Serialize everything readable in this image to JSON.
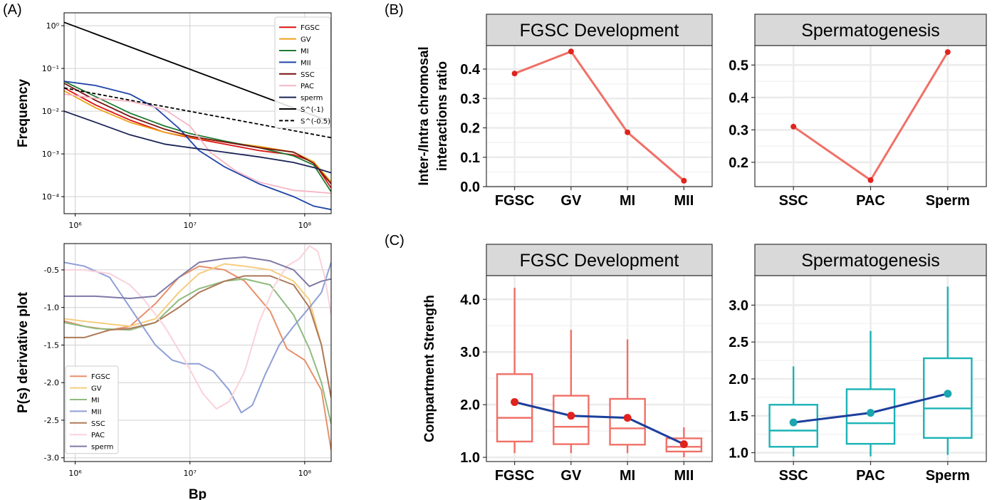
{
  "panel_letters": {
    "a": "(A)",
    "b": "(B)",
    "c": "(C)"
  },
  "colors": {
    "FGSC": "#dd1111",
    "GV": "#f0a21a",
    "MI": "#1e7b32",
    "MII": "#1f45a8",
    "SSC": "#7a1010",
    "PAC": "#f6b6c4",
    "sperm": "#1b2456",
    "deriv_FGSC": "#e8906a",
    "deriv_GV": "#f5cd7e",
    "deriv_MI": "#8fbb7f",
    "deriv_MII": "#8f9fd6",
    "deriv_SSC": "#ad7a5a",
    "deriv_PAC": "#f9d2db",
    "deriv_sperm": "#7e7aa6",
    "strip_fill": "#d9d9d9",
    "panel_grid": "#ebebeb",
    "salmon": "#f07067",
    "teal": "#1bb3b6",
    "mean_red": "#e0231e",
    "mean_blue": "#1d3f9c",
    "mean_teal": "#1aa5b0"
  },
  "chart_data": [
    {
      "id": "A-top",
      "type": "line",
      "ylabel": "Frequency",
      "xscale": "log",
      "yscale": "log",
      "xlim": [
        800000,
        170000000
      ],
      "ylim": [
        4e-05,
        2
      ],
      "x_ticks": [
        {
          "v": 1000000,
          "label": "10⁶"
        },
        {
          "v": 10000000,
          "label": "10⁷"
        },
        {
          "v": 100000000,
          "label": "10⁸"
        }
      ],
      "y_ticks": [
        {
          "v": 1,
          "label": "10⁰"
        },
        {
          "v": 0.1,
          "label": "10⁻¹"
        },
        {
          "v": 0.01,
          "label": "10⁻²"
        },
        {
          "v": 0.001,
          "label": "10⁻³"
        },
        {
          "v": 0.0001,
          "label": "10⁻⁴"
        }
      ],
      "grid": true,
      "legend_position": "top-right",
      "series": [
        {
          "name": "FGSC",
          "style": "solid",
          "x": [
            800000,
            1500000,
            3000000,
            6000000,
            10000000,
            20000000,
            40000000,
            80000000,
            120000000,
            170000000
          ],
          "y": [
            0.035,
            0.014,
            0.0062,
            0.0032,
            0.0024,
            0.0017,
            0.0012,
            0.00095,
            0.00065,
            0.00016
          ]
        },
        {
          "name": "GV",
          "style": "solid",
          "x": [
            800000,
            1500000,
            3000000,
            6000000,
            10000000,
            20000000,
            40000000,
            80000000,
            120000000,
            170000000
          ],
          "y": [
            0.03,
            0.012,
            0.0055,
            0.0032,
            0.0025,
            0.0019,
            0.0015,
            0.0011,
            0.00065,
            0.00022
          ]
        },
        {
          "name": "MI",
          "style": "solid",
          "x": [
            800000,
            1500000,
            3000000,
            6000000,
            10000000,
            20000000,
            40000000,
            80000000,
            120000000,
            170000000
          ],
          "y": [
            0.05,
            0.022,
            0.009,
            0.0045,
            0.003,
            0.002,
            0.0014,
            0.0009,
            0.00055,
            0.00013
          ]
        },
        {
          "name": "MII",
          "style": "solid",
          "x": [
            800000,
            1500000,
            3000000,
            5000000,
            8000000,
            12000000,
            20000000,
            40000000,
            80000000,
            120000000,
            170000000
          ],
          "y": [
            0.05,
            0.04,
            0.025,
            0.012,
            0.004,
            0.0012,
            0.0005,
            0.0002,
            0.0001,
            6e-05,
            5e-05
          ]
        },
        {
          "name": "SSC",
          "style": "solid",
          "x": [
            800000,
            1500000,
            3000000,
            6000000,
            10000000,
            20000000,
            40000000,
            80000000,
            120000000,
            170000000
          ],
          "y": [
            0.045,
            0.018,
            0.0075,
            0.0038,
            0.0026,
            0.0019,
            0.0014,
            0.0011,
            0.0006,
            0.0002
          ]
        },
        {
          "name": "PAC",
          "style": "solid",
          "x": [
            800000,
            1500000,
            3000000,
            6000000,
            10000000,
            15000000,
            25000000,
            40000000,
            80000000,
            120000000,
            170000000
          ],
          "y": [
            0.025,
            0.02,
            0.017,
            0.011,
            0.0045,
            0.0011,
            0.0004,
            0.00022,
            0.00014,
            0.00013,
            0.00012
          ]
        },
        {
          "name": "sperm",
          "style": "solid",
          "x": [
            800000,
            1500000,
            3000000,
            6000000,
            10000000,
            20000000,
            40000000,
            80000000,
            120000000,
            170000000
          ],
          "y": [
            0.01,
            0.0055,
            0.0028,
            0.0017,
            0.0014,
            0.0011,
            0.00085,
            0.00063,
            0.00048,
            0.00036
          ]
        },
        {
          "name": "S^(-1)",
          "style": "solid",
          "color": "#000000",
          "x": [
            800000,
            170000000
          ],
          "y": [
            1.2,
            0.0056
          ]
        },
        {
          "name": "S^(-0.5)",
          "style": "dashed",
          "color": "#000000",
          "x": [
            800000,
            170000000
          ],
          "y": [
            0.035,
            0.0024
          ]
        }
      ]
    },
    {
      "id": "A-bottom",
      "type": "line",
      "xlabel": "Bp",
      "ylabel": "P(s) derivative plot",
      "xscale": "log",
      "xlim": [
        800000,
        170000000
      ],
      "ylim": [
        -3.05,
        -0.15
      ],
      "x_ticks": [
        {
          "v": 1000000,
          "label": "10⁶"
        },
        {
          "v": 10000000,
          "label": "10⁷"
        },
        {
          "v": 100000000,
          "label": "10⁸"
        }
      ],
      "y_ticks": [
        {
          "v": -0.5,
          "label": "-0.5"
        },
        {
          "v": -1.0,
          "label": "-1.0"
        },
        {
          "v": -1.5,
          "label": "-1.5"
        },
        {
          "v": -2.0,
          "label": "-2.0"
        },
        {
          "v": -2.5,
          "label": "-2.5"
        },
        {
          "v": -3.0,
          "label": "-3.0"
        }
      ],
      "grid": true,
      "legend_position": "bottom-left",
      "series": [
        {
          "name": "FGSC",
          "x": [
            800000,
            1200000,
            2000000,
            3000000,
            5000000,
            8000000,
            12000000,
            20000000,
            30000000,
            50000000,
            70000000,
            100000000,
            140000000,
            170000000
          ],
          "y": [
            -1.18,
            -1.25,
            -1.3,
            -1.25,
            -0.95,
            -0.6,
            -0.45,
            -0.5,
            -0.65,
            -1.05,
            -1.55,
            -1.7,
            -2.1,
            -2.9
          ]
        },
        {
          "name": "GV",
          "x": [
            800000,
            1500000,
            3000000,
            5000000,
            8000000,
            12000000,
            20000000,
            30000000,
            50000000,
            80000000,
            110000000,
            140000000,
            170000000
          ],
          "y": [
            -1.15,
            -1.2,
            -1.25,
            -1.15,
            -0.8,
            -0.55,
            -0.42,
            -0.45,
            -0.5,
            -0.65,
            -0.9,
            -1.5,
            -2.2
          ]
        },
        {
          "name": "MI",
          "x": [
            800000,
            1500000,
            3000000,
            5000000,
            8000000,
            12000000,
            20000000,
            30000000,
            50000000,
            80000000,
            110000000,
            140000000,
            170000000
          ],
          "y": [
            -1.2,
            -1.28,
            -1.3,
            -1.2,
            -0.9,
            -0.75,
            -0.65,
            -0.62,
            -0.7,
            -1.1,
            -1.55,
            -2.0,
            -2.55
          ]
        },
        {
          "name": "MII",
          "x": [
            800000,
            1200000,
            2000000,
            3000000,
            5000000,
            7000000,
            9000000,
            12000000,
            16000000,
            22000000,
            28000000,
            35000000,
            45000000,
            60000000,
            80000000,
            110000000,
            140000000,
            170000000
          ],
          "y": [
            -0.4,
            -0.45,
            -0.6,
            -1.0,
            -1.5,
            -1.7,
            -1.75,
            -1.75,
            -1.85,
            -2.1,
            -2.4,
            -2.3,
            -1.9,
            -1.5,
            -1.25,
            -1.0,
            -0.8,
            -0.4
          ]
        },
        {
          "name": "SSC",
          "x": [
            800000,
            1200000,
            2000000,
            3000000,
            5000000,
            8000000,
            12000000,
            20000000,
            30000000,
            50000000,
            80000000,
            110000000,
            140000000,
            170000000
          ],
          "y": [
            -1.4,
            -1.4,
            -1.3,
            -1.28,
            -1.2,
            -1.0,
            -0.8,
            -0.65,
            -0.58,
            -0.58,
            -0.7,
            -1.0,
            -1.5,
            -2.2
          ]
        },
        {
          "name": "PAC",
          "x": [
            800000,
            1200000,
            2000000,
            3000000,
            4000000,
            6000000,
            9000000,
            13000000,
            17000000,
            22000000,
            30000000,
            40000000,
            55000000,
            70000000,
            90000000,
            110000000,
            130000000,
            150000000,
            170000000
          ],
          "y": [
            -0.5,
            -0.5,
            -0.55,
            -0.7,
            -0.9,
            -1.25,
            -1.7,
            -2.15,
            -2.35,
            -2.25,
            -1.85,
            -1.2,
            -0.7,
            -0.45,
            -0.35,
            -0.18,
            -0.25,
            -0.6,
            -1.1
          ]
        },
        {
          "name": "sperm",
          "x": [
            800000,
            1500000,
            3000000,
            5000000,
            8000000,
            12000000,
            20000000,
            30000000,
            50000000,
            80000000,
            110000000,
            140000000,
            170000000
          ],
          "y": [
            -0.85,
            -0.85,
            -0.88,
            -0.85,
            -0.6,
            -0.4,
            -0.35,
            -0.33,
            -0.38,
            -0.5,
            -0.72,
            -0.65,
            -0.62
          ]
        }
      ]
    },
    {
      "id": "B-left",
      "type": "line",
      "strip_title": "FGSC Development",
      "ylabel_lines": [
        "Inter-/Intra chromosal",
        "interactions ratio"
      ],
      "categories": [
        "FGSC",
        "GV",
        "MI",
        "MII"
      ],
      "values": [
        0.385,
        0.46,
        0.185,
        0.02
      ],
      "ylim": [
        0,
        0.48
      ],
      "y_ticks": [
        0.0,
        0.1,
        0.2,
        0.3,
        0.4
      ],
      "y_tick_labels": [
        "0.0",
        "0.1",
        "0.2",
        "0.3",
        "0.4"
      ],
      "grid": true
    },
    {
      "id": "B-right",
      "type": "line",
      "strip_title": "Spermatogenesis",
      "categories": [
        "SSC",
        "PAC",
        "Sperm"
      ],
      "values": [
        0.31,
        0.145,
        0.54
      ],
      "ylim": [
        0.125,
        0.56
      ],
      "y_ticks": [
        0.2,
        0.3,
        0.4,
        0.5
      ],
      "y_tick_labels": [
        "0.2",
        "0.3",
        "0.4",
        "0.5"
      ],
      "grid": true
    },
    {
      "id": "C-left",
      "type": "box",
      "strip_title": "FGSC Development",
      "ylabel": "Compartment Strength",
      "categories": [
        "FGSC",
        "GV",
        "MI",
        "MII"
      ],
      "boxes": [
        {
          "min": 1.08,
          "q1": 1.3,
          "median": 1.75,
          "q3": 2.58,
          "max": 4.22
        },
        {
          "min": 1.08,
          "q1": 1.25,
          "median": 1.58,
          "q3": 2.17,
          "max": 3.42
        },
        {
          "min": 1.08,
          "q1": 1.24,
          "median": 1.55,
          "q3": 2.11,
          "max": 3.24
        },
        {
          "min": 1.0,
          "q1": 1.11,
          "median": 1.2,
          "q3": 1.36,
          "max": 1.57
        }
      ],
      "means": [
        2.05,
        1.79,
        1.75,
        1.25
      ],
      "ylim": [
        0.92,
        4.45
      ],
      "y_ticks": [
        1.0,
        2.0,
        3.0,
        4.0
      ],
      "y_tick_labels": [
        "1.0",
        "2.0",
        "3.0",
        "4.0"
      ],
      "grid": true
    },
    {
      "id": "C-right",
      "type": "box",
      "strip_title": "Spermatogenesis",
      "categories": [
        "SSC",
        "PAC",
        "Sperm"
      ],
      "boxes": [
        {
          "min": 0.95,
          "q1": 1.08,
          "median": 1.3,
          "q3": 1.65,
          "max": 2.17
        },
        {
          "min": 0.95,
          "q1": 1.12,
          "median": 1.4,
          "q3": 1.86,
          "max": 2.65
        },
        {
          "min": 0.97,
          "q1": 1.2,
          "median": 1.6,
          "q3": 2.28,
          "max": 3.25
        }
      ],
      "means": [
        1.41,
        1.54,
        1.8
      ],
      "ylim": [
        0.88,
        3.4
      ],
      "y_ticks": [
        1.0,
        1.5,
        2.0,
        2.5,
        3.0
      ],
      "y_tick_labels": [
        "1.0",
        "1.5",
        "2.0",
        "2.5",
        "3.0"
      ],
      "grid": true
    }
  ]
}
